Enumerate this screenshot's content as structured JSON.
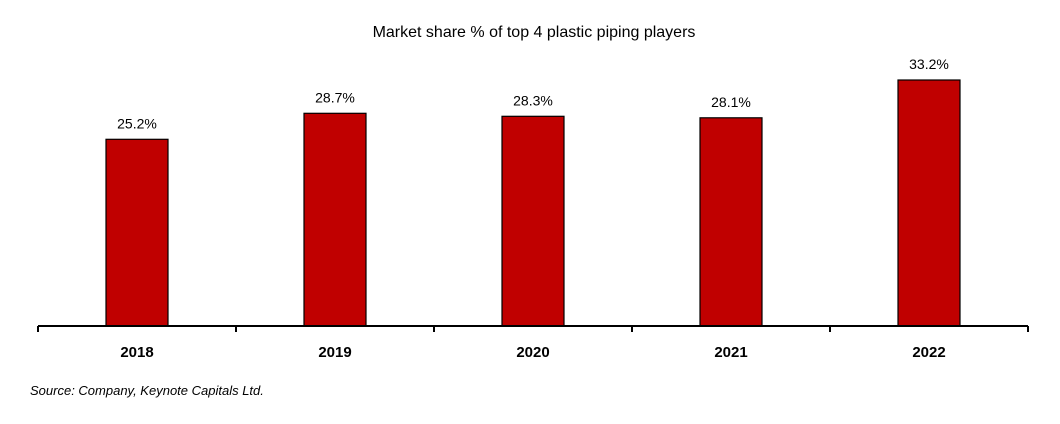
{
  "chart_data": {
    "type": "bar",
    "title": "Market share % of top 4 plastic piping players",
    "xlabel": "",
    "ylabel": "",
    "categories": [
      "2018",
      "2019",
      "2020",
      "2021",
      "2022"
    ],
    "values": [
      25.2,
      28.7,
      28.3,
      28.1,
      33.2
    ],
    "data_labels": [
      "25.2%",
      "28.7%",
      "28.3%",
      "28.1%",
      "33.2%"
    ],
    "ylim": [
      0,
      40
    ],
    "grid": false,
    "legend": "none",
    "bar_color": "#c00000"
  },
  "source_note": "Source: Company, Keynote Capitals Ltd."
}
